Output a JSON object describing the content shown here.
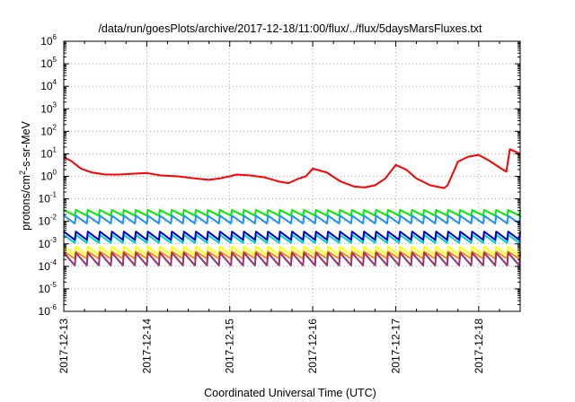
{
  "chart_data": {
    "type": "line",
    "title": "/data/run/goesPlots/archive/2017-12-18/11:00/flux/../flux/5daysMarsFluxes.txt",
    "xlabel": "Coordinated Universal Time (UTC)",
    "ylabel": {
      "prefix": "protons/cm",
      "sup": "2",
      "suffix": "-s-sr-MeV"
    },
    "yscale": "log",
    "ylim_exponents": [
      -6,
      6
    ],
    "y_tick_labels": [
      {
        "base": "10",
        "exp": "6"
      },
      {
        "base": "10",
        "exp": "5"
      },
      {
        "base": "10",
        "exp": "4"
      },
      {
        "base": "10",
        "exp": "3"
      },
      {
        "base": "10",
        "exp": "2"
      },
      {
        "base": "10",
        "exp": "1"
      },
      {
        "base": "10",
        "exp": "0"
      },
      {
        "base": "10",
        "exp": "-1"
      },
      {
        "base": "10",
        "exp": "-2"
      },
      {
        "base": "10",
        "exp": "-3"
      },
      {
        "base": "10",
        "exp": "-4"
      },
      {
        "base": "10",
        "exp": "-5"
      },
      {
        "base": "10",
        "exp": "-6"
      }
    ],
    "x_tick_labels": [
      "2017-12-13",
      "2017-12-14",
      "2017-12-15",
      "2017-12-16",
      "2017-12-17",
      "2017-12-18"
    ],
    "xlim": [
      "2017-12-13T00:00",
      "2017-12-18T12:00"
    ],
    "grid": true,
    "legend": "none",
    "series": [
      {
        "color": "#ff0000",
        "x": [
          "2017-12-13T00:00",
          "2017-12-13T02:00",
          "2017-12-13T05:00",
          "2017-12-13T08:00",
          "2017-12-13T12:00",
          "2017-12-13T16:00",
          "2017-12-13T20:00",
          "2017-12-14T00:00",
          "2017-12-14T04:00",
          "2017-12-14T09:00",
          "2017-12-14T14:00",
          "2017-12-14T18:00",
          "2017-12-14T21:00",
          "2017-12-15T00:00",
          "2017-12-15T02:00",
          "2017-12-15T06:00",
          "2017-12-15T10:00",
          "2017-12-15T14:00",
          "2017-12-15T17:00",
          "2017-12-15T20:00",
          "2017-12-15T22:00",
          "2017-12-16T00:00",
          "2017-12-16T04:00",
          "2017-12-16T08:00",
          "2017-12-16T12:00",
          "2017-12-16T15:00",
          "2017-12-16T18:00",
          "2017-12-16T21:00",
          "2017-12-17T00:00",
          "2017-12-17T03:00",
          "2017-12-17T06:00",
          "2017-12-17T10:00",
          "2017-12-17T14:00",
          "2017-12-17T15:00",
          "2017-12-17T18:00",
          "2017-12-17T21:00",
          "2017-12-18T00:00",
          "2017-12-18T03:00",
          "2017-12-18T06:00",
          "2017-12-18T08:00",
          "2017-12-18T09:00",
          "2017-12-18T12:00"
        ],
        "y": [
          7,
          5,
          2.2,
          1.5,
          1.2,
          1.2,
          1.3,
          1.4,
          1.1,
          1.0,
          0.8,
          0.7,
          0.8,
          1.0,
          1.2,
          1.1,
          0.9,
          0.6,
          0.5,
          0.8,
          1.0,
          2.2,
          1.5,
          0.6,
          0.35,
          0.32,
          0.4,
          0.8,
          3.2,
          2.0,
          0.8,
          0.4,
          0.3,
          0.4,
          4.5,
          7.5,
          9,
          5,
          2.5,
          1.6,
          16,
          10
        ]
      },
      {
        "color": "#00ee00",
        "x_start": "2017-12-13T00:00",
        "x_end": "2017-12-18T12:00",
        "teeth": 38,
        "high": 0.032,
        "low": 0.018
      },
      {
        "color": "#1e90ff",
        "x_start": "2017-12-13T00:00",
        "x_end": "2017-12-18T12:00",
        "teeth": 38,
        "high": 0.018,
        "low": 0.008
      },
      {
        "color": "#00cfcf",
        "x_start": "2017-12-13T00:00",
        "x_end": "2017-12-18T12:00",
        "teeth": 38,
        "high": 0.0025,
        "low": 0.0011
      },
      {
        "color": "#0000cd",
        "x_start": "2017-12-13T00:00",
        "x_end": "2017-12-18T12:00",
        "teeth": 38,
        "high": 0.0035,
        "low": 0.0015
      },
      {
        "color": "#ffff00",
        "x_start": "2017-12-13T00:00",
        "x_end": "2017-12-18T12:00",
        "teeth": 38,
        "high": 0.00075,
        "low": 0.00032
      },
      {
        "color": "#ff8c00",
        "x_start": "2017-12-13T00:00",
        "x_end": "2017-12-18T12:00",
        "teeth": 38,
        "high": 0.00045,
        "low": 0.00022
      },
      {
        "color": "#993377",
        "x_start": "2017-12-13T00:00",
        "x_end": "2017-12-18T12:00",
        "teeth": 38,
        "high": 0.0004,
        "low": 0.00011
      }
    ]
  }
}
